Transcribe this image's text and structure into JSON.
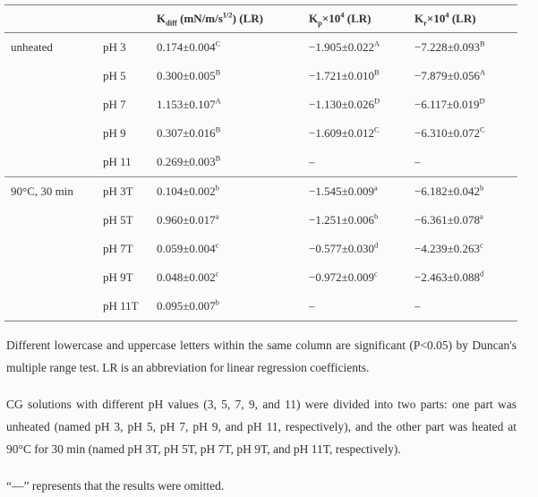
{
  "table": {
    "col_headers": {
      "kdiff": {
        "k": "K",
        "sub": "diff",
        "m1": " (mN/m/s",
        "sup": "1/2",
        "m2": ") (LR)"
      },
      "kp": {
        "k": "K",
        "sub": "p",
        "m1": "×10",
        "sup": "4",
        "m2": " (LR)"
      },
      "kr": {
        "k": "K",
        "sub": "r",
        "m1": "×10",
        "sup": "4",
        "m2": " (LR)"
      }
    },
    "groups": [
      {
        "label": "unheated",
        "rows": [
          {
            "ph": "pH 3",
            "kdiff": {
              "v": "0.174±0.004",
              "s": "C"
            },
            "kp": {
              "v": "−1.905±0.022",
              "s": "A"
            },
            "kr": {
              "v": "−7.228±0.093",
              "s": "B"
            }
          },
          {
            "ph": "pH 5",
            "kdiff": {
              "v": "0.300±0.005",
              "s": "B"
            },
            "kp": {
              "v": "−1.721±0.010",
              "s": "B"
            },
            "kr": {
              "v": "−7.879±0.056",
              "s": "A"
            }
          },
          {
            "ph": "pH 7",
            "kdiff": {
              "v": "1.153±0.107",
              "s": "A"
            },
            "kp": {
              "v": "−1.130±0.026",
              "s": "D"
            },
            "kr": {
              "v": "−6.117±0.019",
              "s": "D"
            }
          },
          {
            "ph": "pH 9",
            "kdiff": {
              "v": "0.307±0.016",
              "s": "B"
            },
            "kp": {
              "v": "−1.609±0.012",
              "s": "C"
            },
            "kr": {
              "v": "−6.310±0.072",
              "s": "C"
            }
          },
          {
            "ph": "pH 11",
            "kdiff": {
              "v": "0.269±0.003",
              "s": "B"
            },
            "kp": {
              "v": "–",
              "s": ""
            },
            "kr": {
              "v": "–",
              "s": ""
            }
          }
        ]
      },
      {
        "label": "90°C, 30 min",
        "rows": [
          {
            "ph": "pH 3T",
            "kdiff": {
              "v": "0.104±0.002",
              "s": "b"
            },
            "kp": {
              "v": "−1.545±0.009",
              "s": "a"
            },
            "kr": {
              "v": "−6.182±0.042",
              "s": "b"
            }
          },
          {
            "ph": "pH 5T",
            "kdiff": {
              "v": "0.960±0.017",
              "s": "a"
            },
            "kp": {
              "v": "−1.251±0.006",
              "s": "b"
            },
            "kr": {
              "v": "−6.361±0.078",
              "s": "a"
            }
          },
          {
            "ph": "pH 7T",
            "kdiff": {
              "v": "0.059±0.004",
              "s": "c"
            },
            "kp": {
              "v": "−0.577±0.030",
              "s": "d"
            },
            "kr": {
              "v": "−4.239±0.263",
              "s": "c"
            }
          },
          {
            "ph": "pH 9T",
            "kdiff": {
              "v": "0.048±0.002",
              "s": "c"
            },
            "kp": {
              "v": "−0.972±0.009",
              "s": "c"
            },
            "kr": {
              "v": "−2.463±0.088",
              "s": "d"
            }
          },
          {
            "ph": "pH 11T",
            "kdiff": {
              "v": "0.095±0.007",
              "s": "b"
            },
            "kp": {
              "v": "–",
              "s": ""
            },
            "kr": {
              "v": "–",
              "s": ""
            }
          }
        ]
      }
    ]
  },
  "footnotes": [
    "Different lowercase and uppercase letters within the same column are significant (P<0.05) by Duncan's multiple range test. LR is an abbreviation for linear regression coefficients.",
    "CG solutions with different pH values (3, 5, 7, 9, and 11) were divided into two parts: one part was unheated (named pH 3, pH 5, pH 7, pH 9, and pH 11, respectively), and the other part was heated at 90°C for 30 min (named pH 3T, pH 5T, pH 7T, pH 9T, and pH 11T, respectively).",
    "“—” represents that the results were omitted."
  ]
}
